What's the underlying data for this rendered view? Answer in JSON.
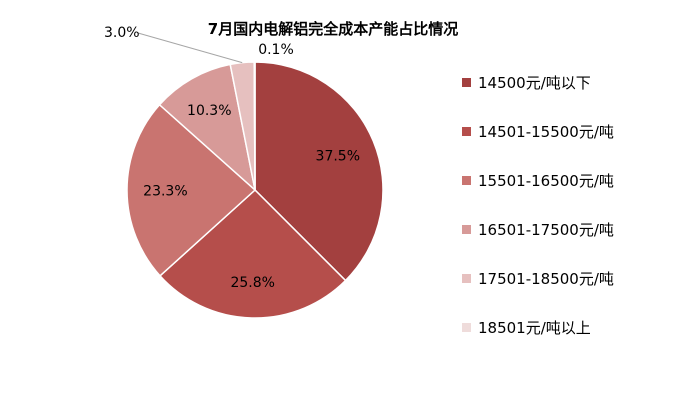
{
  "chart_data": {
    "type": "pie",
    "title": "7月国内电解铝完全成本产能占比情况",
    "categories": [
      "14500元/吨以下",
      "14501-15500元/吨",
      "15501-16500元/吨",
      "16501-17500元/吨",
      "17501-18500元/吨",
      "18501元/吨以上"
    ],
    "values": [
      37.5,
      25.8,
      23.3,
      10.3,
      3.0,
      0.1
    ],
    "labels": [
      "37.5%",
      "25.8%",
      "23.3%",
      "10.3%",
      "3.0%",
      "0.1%"
    ],
    "colors": [
      "#a3403f",
      "#b54e4b",
      "#c97470",
      "#d79a98",
      "#e6c0bf",
      "#efdcdb"
    ],
    "legend_position": "right",
    "start_angle": "12 o'clock, clockwise"
  }
}
